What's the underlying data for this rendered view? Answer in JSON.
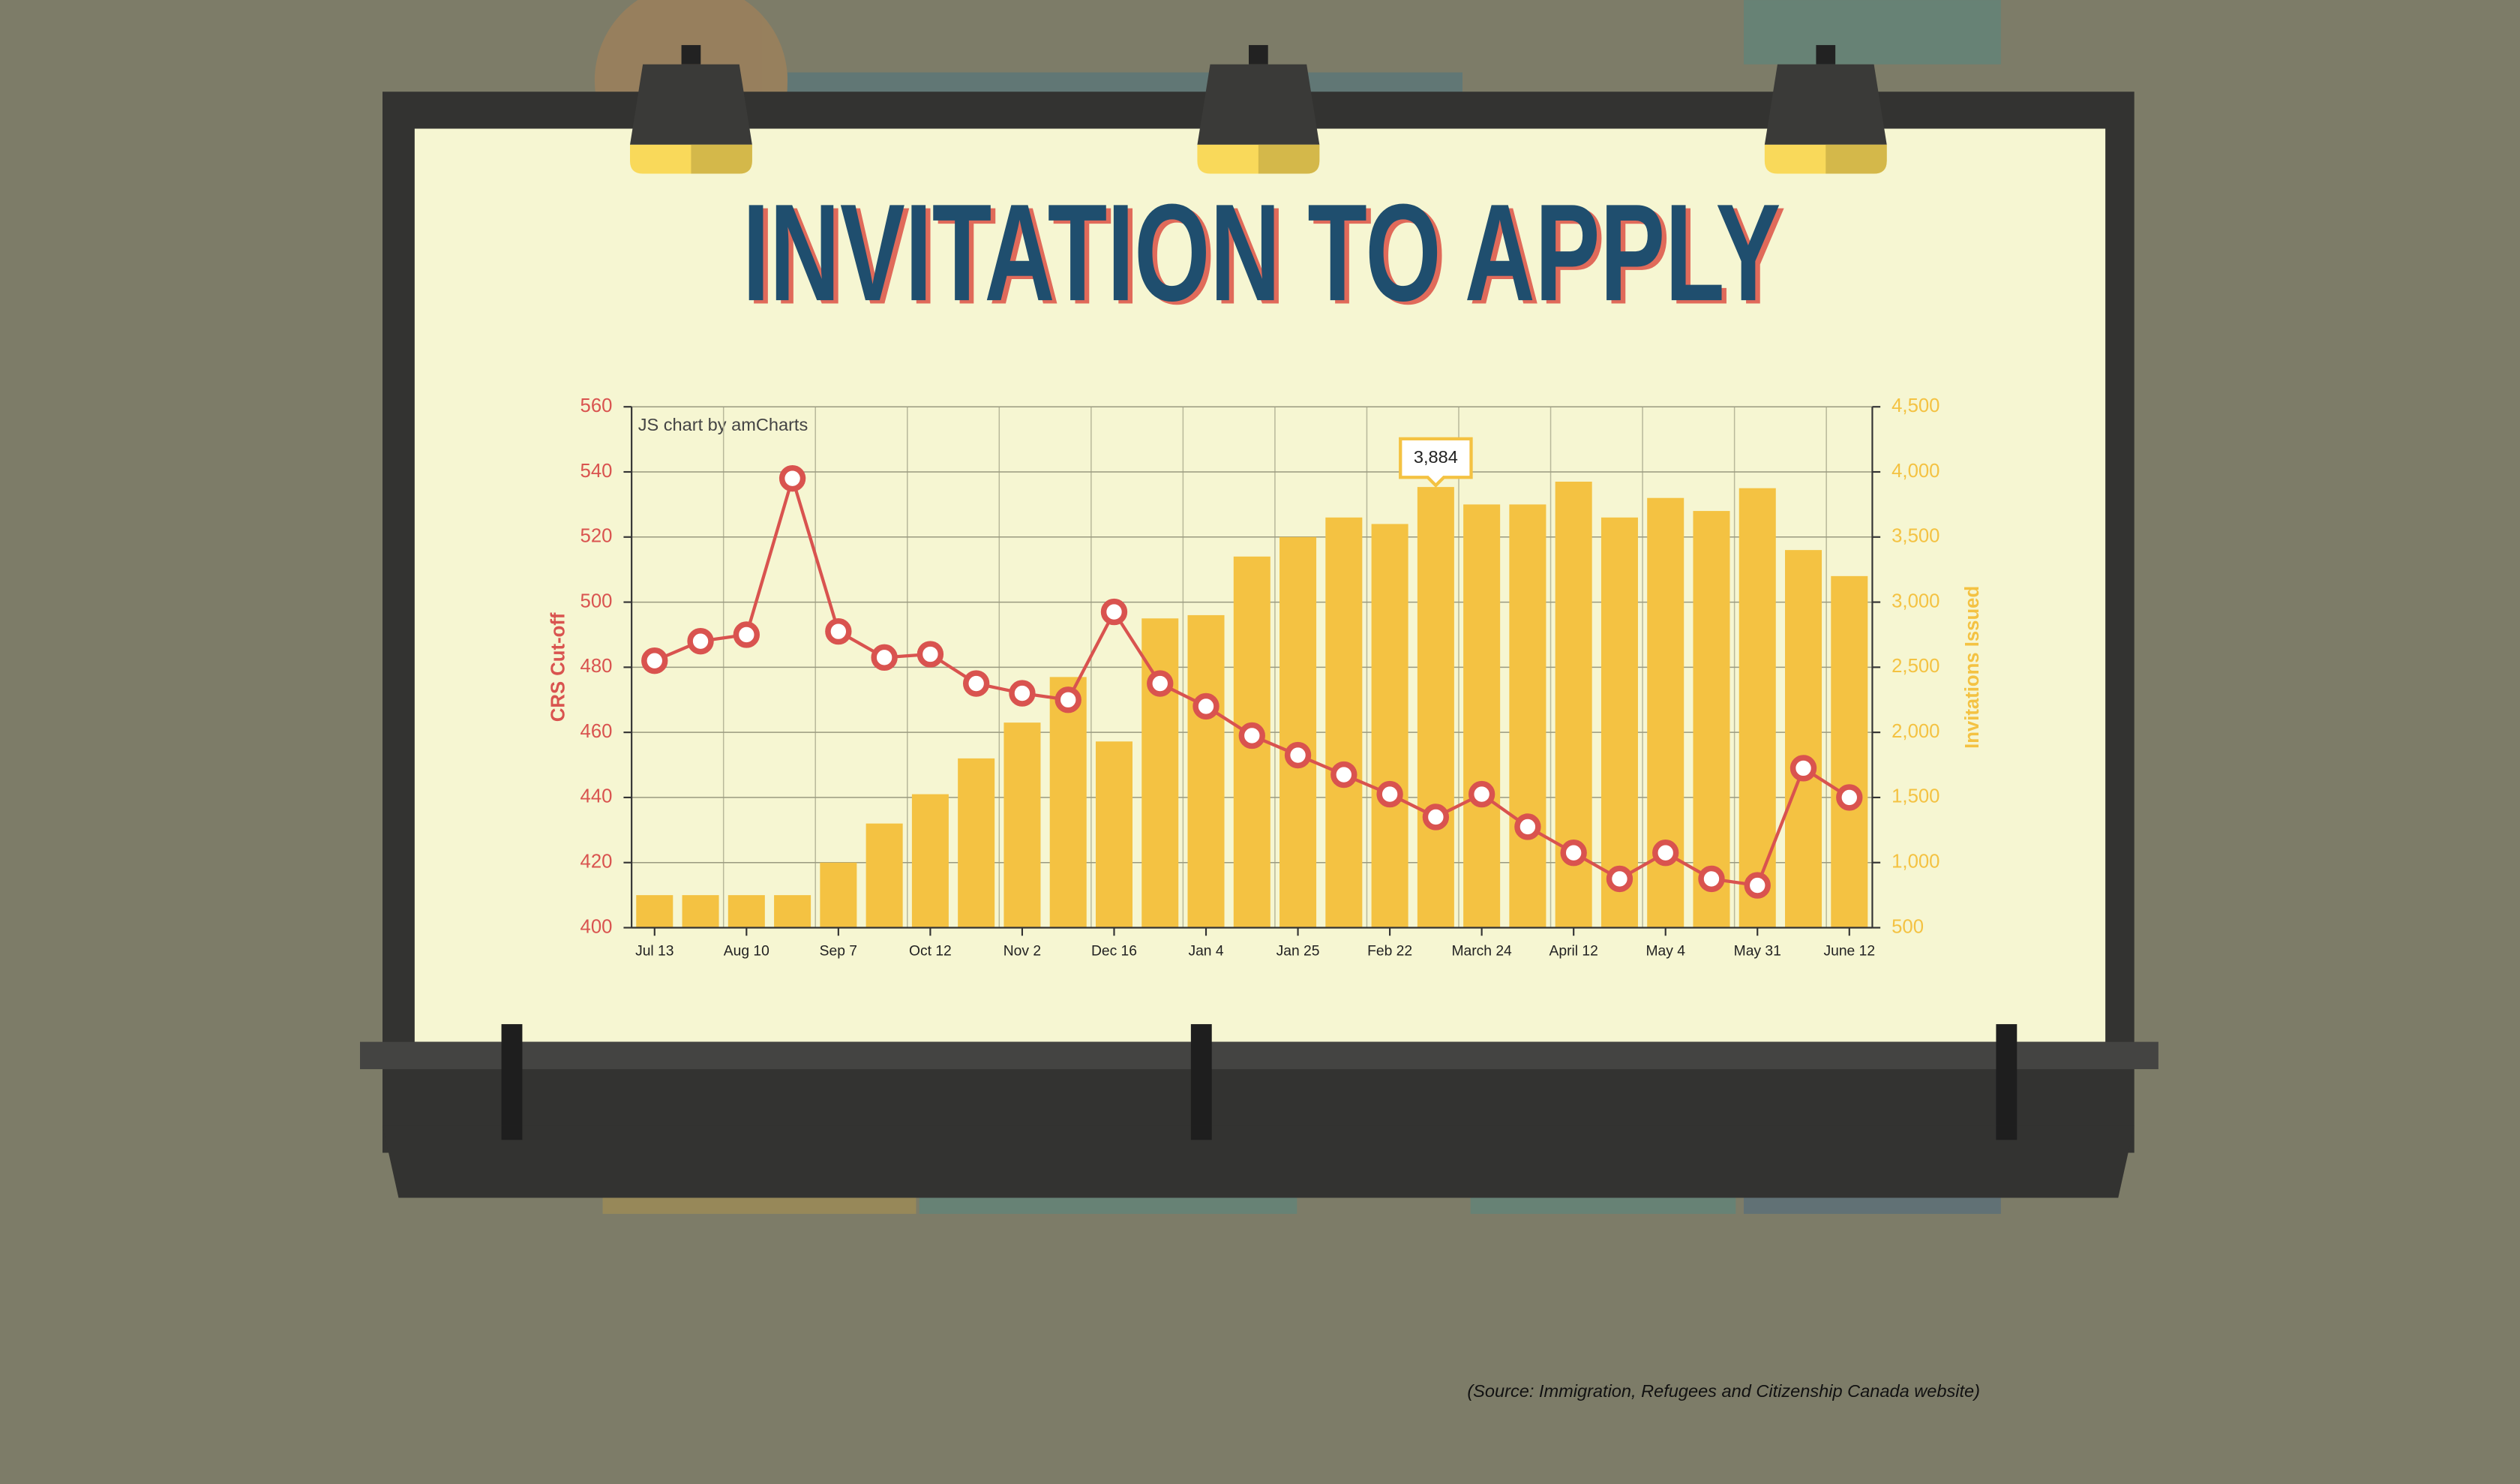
{
  "chart_data": {
    "type": "bar",
    "title": "INVITATION TO APPLY",
    "credit": "JS chart by amCharts",
    "y_label": "CRS Cut-off",
    "y2_label": "Invitations Issued",
    "categories": [
      "Jul 13",
      null,
      "Aug 10",
      null,
      "Sep 7",
      null,
      "Oct 12",
      null,
      "Nov 2",
      null,
      "Dec 16",
      null,
      "Jan 4",
      null,
      "Jan 25",
      null,
      "Feb 22",
      null,
      "March 24",
      null,
      "April 12",
      null,
      "May 4",
      null,
      "May 31",
      null,
      "June 12"
    ],
    "ylim": [
      400,
      560
    ],
    "yticks": [
      400,
      420,
      440,
      460,
      480,
      500,
      520,
      540,
      560
    ],
    "y2lim": [
      500,
      4500
    ],
    "y2ticks": [
      500,
      {
        "value": 1000,
        "label": "1,000"
      },
      {
        "value": 1500,
        "label": "1,500"
      },
      {
        "value": 2000,
        "label": "2,000"
      },
      {
        "value": 2500,
        "label": "2,500"
      },
      {
        "value": 3000,
        "label": "3,000"
      },
      {
        "value": 3500,
        "label": "3,500"
      },
      {
        "value": 4000,
        "label": "4,000"
      },
      {
        "value": 4500,
        "label": "4,500"
      }
    ],
    "grid": true,
    "series": [
      {
        "type": "bar",
        "axis": "y2",
        "color": "#f4c242",
        "values": [
          750,
          750,
          750,
          750,
          1000,
          1300,
          1525,
          1800,
          2075,
          2425,
          1930,
          2875,
          2900,
          3350,
          3500,
          3650,
          3600,
          3884,
          3750,
          3750,
          3925,
          3650,
          3800,
          3700,
          3875,
          3400,
          3200
        ],
        "value_labels": [
          null,
          null,
          null,
          null,
          null,
          null,
          null,
          null,
          null,
          null,
          null,
          null,
          null,
          null,
          null,
          null,
          null,
          "3,884",
          null,
          null,
          null,
          null,
          null,
          null,
          null,
          null,
          null
        ]
      },
      {
        "type": "line",
        "color": "#d9534f",
        "values": [
          482,
          488,
          490,
          538,
          491,
          483,
          484,
          475,
          472,
          470,
          497,
          475,
          468,
          459,
          453,
          447,
          441,
          434,
          441,
          431,
          423,
          415,
          423,
          415,
          413,
          449,
          440
        ]
      }
    ]
  },
  "source": "(Source: Immigration, Refugees and Citizenship Canada website)"
}
